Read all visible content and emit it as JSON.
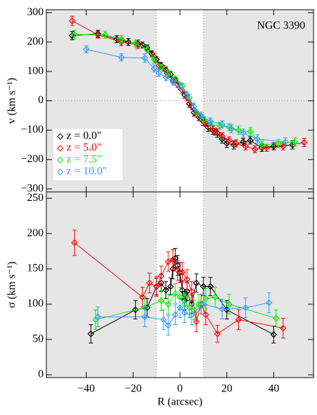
{
  "chart_data": [
    {
      "type": "line",
      "ylabel": "v (km s⁻¹)",
      "annotation": "NGC 3390",
      "xlim": [
        -57,
        57
      ],
      "ylim": [
        -310,
        310
      ],
      "xticks": [
        {
          "value": -40,
          "label": "−40"
        },
        {
          "value": -20,
          "label": "−20"
        },
        0,
        20,
        40
      ],
      "show_xtick_labels": false,
      "yticks": [
        {
          "value": -300,
          "label": "−300"
        },
        {
          "value": -200,
          "label": "−200"
        },
        {
          "value": -100,
          "label": "−100"
        },
        0,
        100,
        200,
        300
      ],
      "band": [
        -10,
        10
      ],
      "hline": 0,
      "legend": "lower left",
      "series": [
        {
          "name": "z = 0.0\"",
          "color": "#000000",
          "x": [
            -46,
            -35,
            -27,
            -22,
            -18,
            -16,
            -14,
            -12,
            -10,
            -8,
            -6,
            -4,
            -2,
            0,
            2,
            4,
            6,
            8,
            10,
            12,
            14,
            16,
            18,
            20,
            23,
            27,
            30,
            35,
            40,
            48
          ],
          "values": [
            222,
            228,
            210,
            200,
            195,
            190,
            180,
            160,
            140,
            120,
            105,
            90,
            70,
            50,
            20,
            -10,
            -40,
            -55,
            -70,
            -90,
            -100,
            -110,
            -130,
            -145,
            -150,
            -140,
            -135,
            -160,
            -155,
            -150
          ],
          "errors": [
            14,
            12,
            12,
            12,
            12,
            10,
            10,
            10,
            10,
            10,
            10,
            10,
            10,
            10,
            12,
            12,
            12,
            12,
            14,
            14,
            14,
            14,
            14,
            14,
            14,
            12,
            12,
            12,
            12,
            14
          ]
        },
        {
          "name": "z = 5.0\"",
          "color": "#ff0000",
          "x": [
            -46,
            -35,
            -25,
            -18,
            -14,
            -11,
            -9,
            -7,
            -5,
            -3,
            -1,
            1,
            3,
            5,
            7,
            9,
            11,
            13,
            15,
            18,
            21,
            24,
            28,
            32,
            37,
            44,
            53
          ],
          "values": [
            272,
            225,
            200,
            190,
            175,
            150,
            120,
            110,
            90,
            70,
            55,
            35,
            10,
            -20,
            -45,
            -60,
            -75,
            -90,
            -105,
            -120,
            -135,
            -145,
            -155,
            -165,
            -160,
            -155,
            -142
          ],
          "errors": [
            16,
            12,
            12,
            12,
            12,
            12,
            12,
            10,
            10,
            10,
            10,
            10,
            10,
            10,
            10,
            12,
            12,
            12,
            12,
            12,
            12,
            12,
            12,
            12,
            12,
            12,
            14
          ]
        },
        {
          "name": "z = 7.5\"",
          "color": "#00ee00",
          "x": [
            -45,
            -32,
            -25,
            -19,
            -14,
            -11,
            -8,
            -5,
            -2,
            1,
            4,
            7,
            10,
            13,
            17,
            21,
            25,
            30,
            35,
            42,
            49
          ],
          "values": [
            225,
            225,
            210,
            195,
            175,
            140,
            115,
            95,
            75,
            50,
            10,
            -40,
            -65,
            -80,
            -85,
            -90,
            -100,
            -105,
            -150,
            -145,
            -140
          ],
          "errors": [
            14,
            12,
            12,
            12,
            12,
            12,
            10,
            10,
            10,
            10,
            12,
            12,
            12,
            12,
            12,
            12,
            14,
            14,
            14,
            14,
            14
          ]
        },
        {
          "name": "z = 10.0\"",
          "color": "#3399ff",
          "x": [
            -40,
            -25,
            -15,
            -11,
            -9,
            -6,
            -3,
            0,
            3,
            6,
            9,
            13,
            18,
            22,
            27,
            33,
            45
          ],
          "values": [
            175,
            148,
            145,
            110,
            95,
            80,
            65,
            50,
            20,
            -20,
            -50,
            -70,
            -80,
            -95,
            -110,
            -130,
            -140
          ],
          "errors": [
            12,
            12,
            14,
            12,
            12,
            12,
            12,
            12,
            12,
            12,
            12,
            12,
            12,
            14,
            14,
            14,
            14
          ]
        }
      ]
    },
    {
      "type": "line",
      "ylabel": "σ (km s⁻¹)",
      "xlabel": "R (arcsec)",
      "xlim": [
        -57,
        57
      ],
      "ylim": [
        -4,
        259
      ],
      "xticks": [
        {
          "value": -40,
          "label": "−40"
        },
        {
          "value": -20,
          "label": "−20"
        },
        0,
        20,
        40
      ],
      "show_xtick_labels": true,
      "yticks": [
        0,
        50,
        100,
        150,
        200,
        250
      ],
      "band": [
        -10,
        10
      ],
      "series": [
        {
          "color": "#000000",
          "x": [
            -38,
            -19,
            -14,
            -10,
            -8,
            -6,
            -4,
            -3,
            -2,
            -1,
            0,
            1,
            2,
            3,
            5,
            7,
            10,
            13,
            20,
            40
          ],
          "values": [
            58,
            92,
            95,
            125,
            130,
            120,
            125,
            150,
            165,
            155,
            145,
            120,
            105,
            118,
            100,
            130,
            125,
            125,
            92,
            57
          ],
          "errors": [
            13,
            13,
            13,
            12,
            12,
            12,
            12,
            14,
            14,
            14,
            14,
            13,
            13,
            13,
            13,
            13,
            13,
            13,
            13,
            12
          ]
        },
        {
          "color": "#ff0000",
          "x": [
            -45,
            -16,
            -13,
            -10,
            -8,
            -5,
            -3,
            -1,
            1,
            3,
            5,
            7,
            9,
            11,
            16,
            25,
            44
          ],
          "values": [
            187,
            110,
            130,
            125,
            140,
            160,
            163,
            148,
            145,
            135,
            118,
            75,
            100,
            85,
            58,
            78,
            66
          ],
          "errors": [
            18,
            14,
            14,
            14,
            14,
            14,
            14,
            14,
            14,
            14,
            14,
            14,
            14,
            14,
            12,
            14,
            14
          ]
        },
        {
          "color": "#00ee00",
          "x": [
            -36,
            -15,
            -8,
            -5,
            -2,
            0,
            2,
            4,
            6,
            8,
            11,
            15,
            21,
            41
          ],
          "values": [
            78,
            95,
            105,
            100,
            115,
            110,
            100,
            95,
            92,
            100,
            108,
            110,
            100,
            80
          ],
          "errors": [
            14,
            14,
            14,
            14,
            14,
            14,
            14,
            14,
            14,
            14,
            14,
            14,
            14,
            12
          ]
        },
        {
          "color": "#3399ff",
          "x": [
            -35,
            -15,
            -7,
            -5,
            -2,
            0,
            2,
            5,
            10,
            18,
            28,
            38
          ],
          "values": [
            82,
            82,
            78,
            70,
            85,
            95,
            88,
            85,
            100,
            93,
            95,
            102
          ],
          "errors": [
            14,
            14,
            14,
            14,
            14,
            14,
            14,
            14,
            14,
            14,
            14,
            14
          ]
        }
      ]
    }
  ]
}
